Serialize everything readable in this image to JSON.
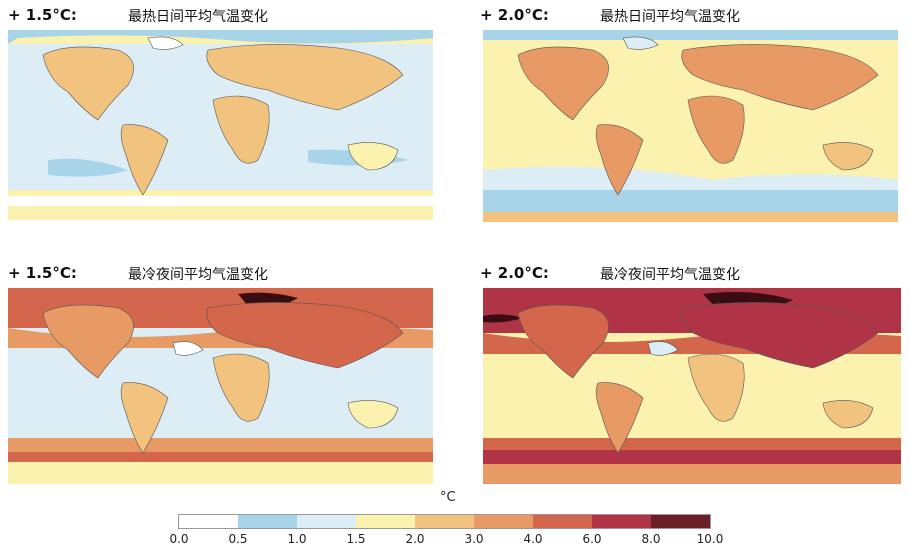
{
  "panels": [
    {
      "warming": "+ 1.5°C:",
      "title": "最热日间平均气温变化",
      "variant": "day15"
    },
    {
      "warming": "+ 2.0°C:",
      "title": "最热日间平均气温变化",
      "variant": "day20"
    },
    {
      "warming": "+ 1.5°C:",
      "title": "最冷夜间平均气温变化",
      "variant": "night15"
    },
    {
      "warming": "+ 2.0°C:",
      "title": "最冷夜间平均气温变化",
      "variant": "night20"
    }
  ],
  "legend": {
    "unit": "°C",
    "ticks": [
      "0.0",
      "0.5",
      "1.0",
      "1.5",
      "2.0",
      "3.0",
      "4.0",
      "6.0",
      "8.0",
      "10.0"
    ],
    "colors": [
      "#ffffff",
      "#a8d4ea",
      "#dcedf6",
      "#fbf2b0",
      "#f2c27f",
      "#e89a64",
      "#d4664b",
      "#b03445",
      "#6c1f26"
    ]
  }
}
